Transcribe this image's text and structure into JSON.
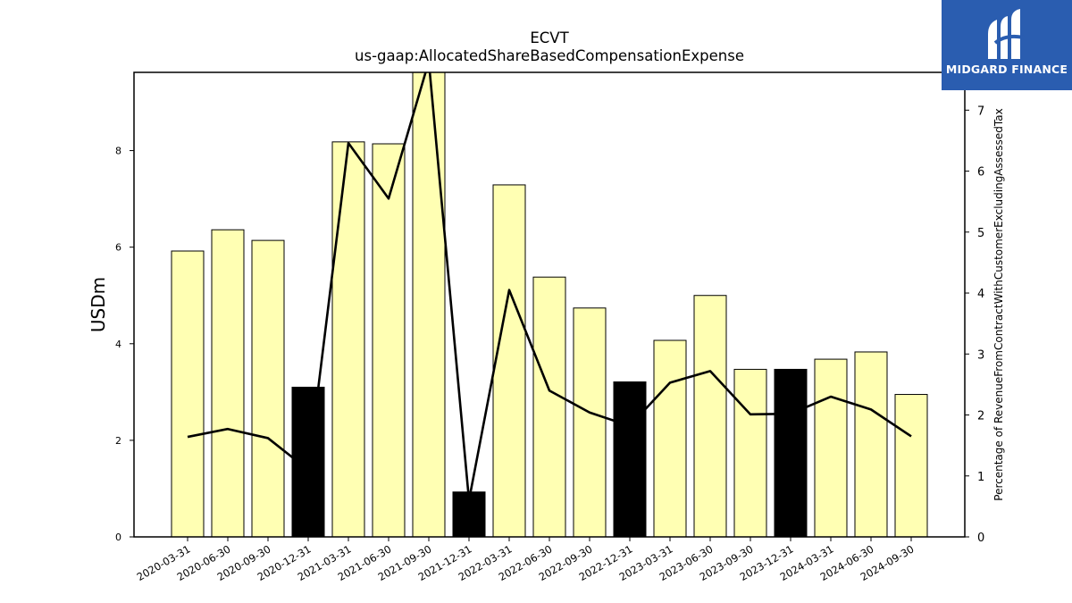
{
  "chart_data": {
    "type": "bar",
    "title": "ECVT",
    "subtitle": "us-gaap:AllocatedShareBasedCompensationExpense",
    "ylabel": "USDm",
    "y2label": "Percentage of RevenueFromContractWithCustomerExcludingAssessedTax",
    "categories": [
      "2020-03-31",
      "2020-06-30",
      "2020-09-30",
      "2020-12-31",
      "2021-03-31",
      "2021-06-30",
      "2021-09-30",
      "2021-12-31",
      "2022-03-31",
      "2022-06-30",
      "2022-09-30",
      "2022-12-31",
      "2023-03-31",
      "2023-06-30",
      "2023-09-30",
      "2023-12-31",
      "2024-03-31",
      "2024-06-30",
      "2024-09-30"
    ],
    "values": [
      5.92,
      6.36,
      6.14,
      3.1,
      8.18,
      8.14,
      9.7,
      0.93,
      7.29,
      5.38,
      4.74,
      3.21,
      4.07,
      5.0,
      3.47,
      3.47,
      3.68,
      3.83,
      2.95
    ],
    "highlighted": [
      false,
      false,
      false,
      true,
      false,
      false,
      false,
      true,
      false,
      false,
      false,
      true,
      false,
      false,
      false,
      true,
      false,
      false,
      false
    ],
    "line_series": {
      "values": [
        1.64,
        1.77,
        1.62,
        1.1,
        6.46,
        5.55,
        7.8,
        0.6,
        4.05,
        2.4,
        2.04,
        1.82,
        2.53,
        2.72,
        2.01,
        2.02,
        2.3,
        2.09,
        1.65
      ]
    },
    "ylim": [
      0,
      9.62
    ],
    "y2lim": [
      0,
      7.62
    ],
    "yticks": [
      0,
      2,
      4,
      6,
      8
    ],
    "y2ticks": [
      0,
      1,
      2,
      3,
      4,
      5,
      6,
      7
    ],
    "colors": {
      "bar": "#ffffb3",
      "bar_highlight": "#000000",
      "line": "#000000"
    },
    "grid": false
  },
  "logo": {
    "text": "MIDGARD FINANCE",
    "background": "#2a5db0"
  }
}
